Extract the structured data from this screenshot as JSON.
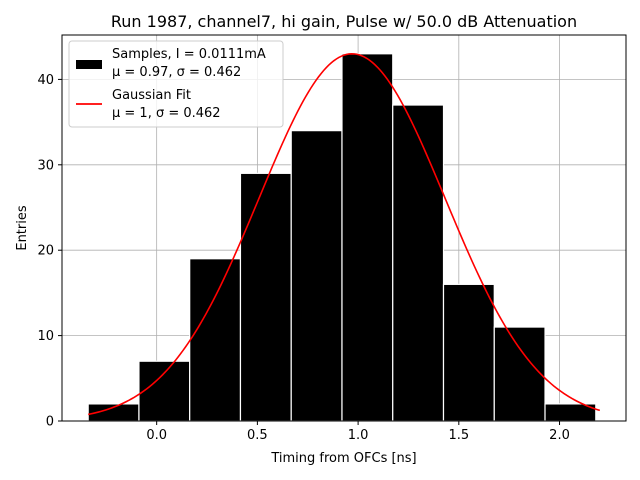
{
  "chart_data": {
    "type": "bar",
    "title": "Run 1987, channel7, hi gain, Pulse w/ 50.0 dB Attenuation",
    "xlabel": "Timing from OFCs [ns]",
    "ylabel": "Entries",
    "xlim": [
      -0.47,
      2.33
    ],
    "ylim": [
      0,
      45.2
    ],
    "xticks": [
      0.0,
      0.5,
      1.0,
      1.5,
      2.0
    ],
    "xtick_labels": [
      "0.0",
      "0.5",
      "1.0",
      "1.5",
      "2.0"
    ],
    "yticks": [
      0,
      10,
      20,
      30,
      40
    ],
    "ytick_labels": [
      "0",
      "10",
      "20",
      "30",
      "40"
    ],
    "grid": true,
    "legend_position": "top-left",
    "bins": [
      {
        "x0": -0.34,
        "x1": -0.088,
        "count": 2
      },
      {
        "x0": -0.088,
        "x1": 0.164,
        "count": 7
      },
      {
        "x0": 0.164,
        "x1": 0.416,
        "count": 19
      },
      {
        "x0": 0.416,
        "x1": 0.668,
        "count": 29
      },
      {
        "x0": 0.668,
        "x1": 0.92,
        "count": 34
      },
      {
        "x0": 0.92,
        "x1": 1.172,
        "count": 43
      },
      {
        "x0": 1.172,
        "x1": 1.424,
        "count": 37
      },
      {
        "x0": 1.424,
        "x1": 1.676,
        "count": 16
      },
      {
        "x0": 1.676,
        "x1": 1.928,
        "count": 11
      },
      {
        "x0": 1.928,
        "x1": 2.18,
        "count": 2
      }
    ],
    "series": [
      {
        "name": "Samples, I = 0.0111mA",
        "stats": "μ = 0.97, σ = 0.462",
        "kind": "histogram",
        "color": "#000000"
      },
      {
        "name": "Gaussian Fit",
        "stats": "μ = 1, σ = 0.462",
        "kind": "curve",
        "color": "#ff0000"
      }
    ],
    "fit": {
      "amplitude": 43.0,
      "mean": 0.97,
      "sigma": 0.462,
      "x_range": [
        -0.34,
        2.2
      ]
    }
  }
}
